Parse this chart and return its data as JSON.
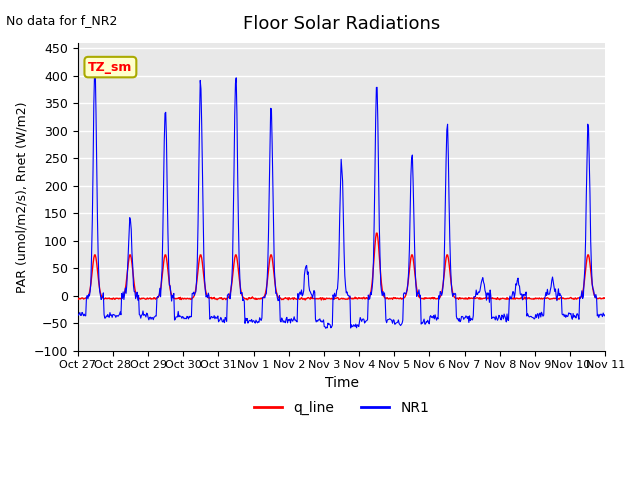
{
  "title": "Floor Solar Radiations",
  "xlabel": "Time",
  "ylabel": "PAR (umol/m2/s), Rnet (W/m2)",
  "top_left_text": "No data for f_NR2",
  "legend_label1": "q_line",
  "legend_label2": "NR1",
  "legend_color1": "red",
  "legend_color2": "blue",
  "box_label": "TZ_sm",
  "box_facecolor": "#ffffcc",
  "box_edgecolor": "#aaaa00",
  "ylim": [
    -100,
    460
  ],
  "yticks": [
    -100,
    -50,
    0,
    50,
    100,
    150,
    200,
    250,
    300,
    350,
    400,
    450
  ],
  "bg_color": "#e8e8e8",
  "fig_color": "#ffffff",
  "grid_color": "#ffffff",
  "line_color_red": "#ff0000",
  "line_color_blue": "#0000ff",
  "xtick_labels": [
    "Oct 27",
    "Oct 28",
    "Oct 29",
    "Oct 30",
    "Oct 31",
    "Nov 1",
    "Nov 2",
    "Nov 3",
    "Nov 4",
    "Nov 5",
    "Nov 6",
    "Nov 7",
    "Nov 8",
    "Nov 9",
    "Nov 10",
    "Nov 11"
  ],
  "num_days": 15,
  "points_per_day": 48,
  "blue_peaks": [
    420,
    145,
    345,
    390,
    395,
    345,
    55,
    245,
    390,
    260,
    310,
    30,
    30,
    30,
    310
  ],
  "red_peaks": [
    80,
    80,
    80,
    80,
    80,
    80,
    0,
    0,
    120,
    80,
    80,
    0,
    0,
    0,
    80
  ],
  "blue_troughs": [
    -35,
    -35,
    -40,
    -40,
    -45,
    -45,
    -45,
    -55,
    -45,
    -50,
    -40,
    -40,
    -40,
    -35,
    -35
  ]
}
